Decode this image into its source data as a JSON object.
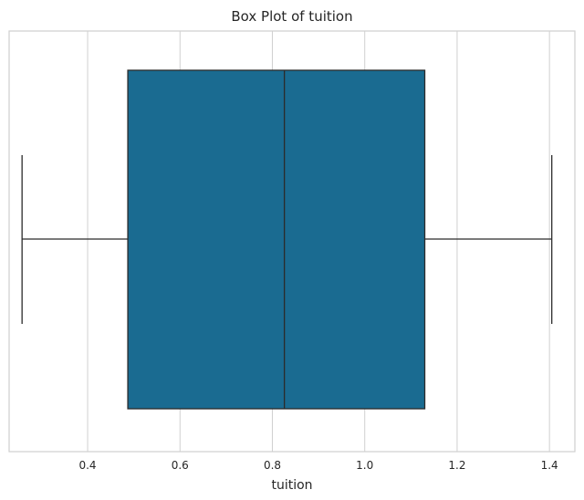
{
  "chart_data": {
    "type": "box",
    "title": "Box Plot of tuition",
    "xlabel": "tuition",
    "ylabel": "",
    "orientation": "horizontal",
    "xlim": [
      0.23,
      1.455
    ],
    "xticks": [
      0.4,
      0.6,
      0.8,
      1.0,
      1.2,
      1.4
    ],
    "xtick_labels": [
      "0.4",
      "0.6",
      "0.8",
      "1.0",
      "1.2",
      "1.4"
    ],
    "grid": "vertical",
    "box": {
      "whisker_low": 0.258,
      "q1": 0.487,
      "median": 0.826,
      "q3": 1.13,
      "whisker_high": 1.405
    },
    "colors": {
      "box_fill": "#1a6b91",
      "line": "#2b2b2b",
      "grid": "#d0d0d0",
      "frame": "#cfcfcf"
    }
  }
}
